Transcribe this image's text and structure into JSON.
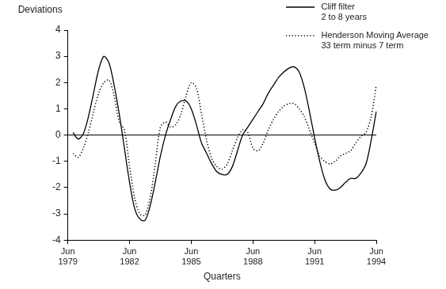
{
  "chart_data": {
    "type": "line",
    "x_label": "Quarters",
    "y_label": "Deviations",
    "categories": [
      "Jun 1979",
      null,
      null,
      null,
      null,
      null,
      null,
      null,
      null,
      null,
      null,
      null,
      "Jun 1982",
      null,
      null,
      null,
      null,
      null,
      null,
      null,
      null,
      null,
      null,
      null,
      "Jun 1985",
      null,
      null,
      null,
      null,
      null,
      null,
      null,
      null,
      null,
      null,
      null,
      "Jun 1988",
      null,
      null,
      null,
      null,
      null,
      null,
      null,
      null,
      null,
      null,
      null,
      "Jun 1991",
      null,
      null,
      null,
      null,
      null,
      null,
      null,
      null,
      null,
      null,
      null,
      "Jun 1994"
    ],
    "series": [
      {
        "name": "Cliff filter\n2 to 8 years",
        "color": "#000000",
        "line_style": "solid",
        "values": [
          null,
          0.1,
          -0.15,
          0.05,
          0.7,
          1.6,
          2.5,
          3.0,
          2.75,
          1.9,
          0.8,
          -0.5,
          -1.8,
          -2.8,
          -3.2,
          -3.25,
          -2.7,
          -1.8,
          -0.8,
          0.0,
          0.6,
          1.1,
          1.3,
          1.3,
          1.0,
          0.4,
          -0.3,
          -0.7,
          -1.1,
          -1.4,
          -1.5,
          -1.5,
          -1.2,
          -0.6,
          0.0,
          0.3,
          0.6,
          0.9,
          1.2,
          1.6,
          1.9,
          2.2,
          2.4,
          2.55,
          2.6,
          2.4,
          1.8,
          0.9,
          -0.1,
          -1.0,
          -1.7,
          -2.05,
          -2.1,
          -2.0,
          -1.8,
          -1.65,
          -1.65,
          -1.45,
          -1.1,
          -0.2,
          0.9
        ]
      },
      {
        "name": "Henderson Moving Average\n33 term minus 7 term",
        "color": "#000000",
        "line_style": "dotted",
        "values": [
          null,
          -0.7,
          -0.85,
          -0.5,
          0.1,
          0.9,
          1.6,
          2.0,
          2.1,
          1.5,
          0.5,
          0.2,
          -1.2,
          -2.4,
          -3.0,
          -3.05,
          -2.4,
          -1.1,
          0.3,
          0.5,
          0.3,
          0.4,
          0.8,
          1.5,
          2.0,
          1.8,
          0.8,
          -0.2,
          -0.9,
          -1.2,
          -1.3,
          -1.1,
          -0.6,
          -0.1,
          0.2,
          0.1,
          -0.5,
          -0.6,
          -0.3,
          0.2,
          0.6,
          0.9,
          1.1,
          1.2,
          1.2,
          1.0,
          0.7,
          0.2,
          -0.3,
          -0.8,
          -1.0,
          -1.1,
          -1.0,
          -0.8,
          -0.7,
          -0.6,
          -0.3,
          -0.05,
          0.1,
          0.7,
          1.9
        ]
      }
    ],
    "ylim": [
      -4,
      4
    ],
    "yticks": [
      -4,
      -3,
      -2,
      -1,
      0,
      1,
      2,
      3,
      4
    ],
    "grid": false,
    "legend": "upper right"
  }
}
